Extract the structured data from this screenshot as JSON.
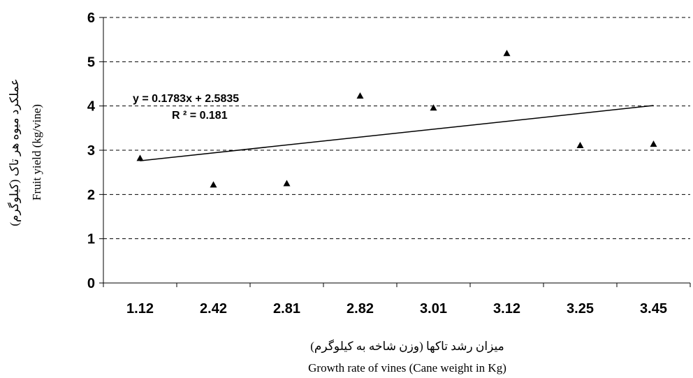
{
  "chart_data": {
    "type": "scatter",
    "categories": [
      "1.12",
      "2.42",
      "2.81",
      "2.82",
      "3.01",
      "3.12",
      "3.25",
      "3.45"
    ],
    "series": [
      {
        "values": [
          2.82,
          2.22,
          2.25,
          4.23,
          3.96,
          5.19,
          3.11,
          3.14
        ],
        "marker": "triangle",
        "color": "#000000"
      }
    ],
    "trendline": {
      "type": "linear",
      "slope": 0.1783,
      "intercept": 2.5835,
      "equation_label": "y = 0.1783x + 2.5835",
      "r2_label": "R ² = 0.181",
      "color": "#000000"
    },
    "ylim": [
      0,
      6
    ],
    "yticks": [
      "0",
      "1",
      "2",
      "3",
      "4",
      "5",
      "6"
    ],
    "ygrid": "dashed",
    "legend": "none",
    "xlabel_fa": "میزان رشد تاکها (وزن شاخه به کیلوگرم)",
    "xlabel": "Growth rate of vines (Cane weight in Kg)",
    "ylabel_fa": "عملکرد میوه هر تاک (کیلوگرم)",
    "ylabel": "Fruit yield (kg/vine)"
  }
}
